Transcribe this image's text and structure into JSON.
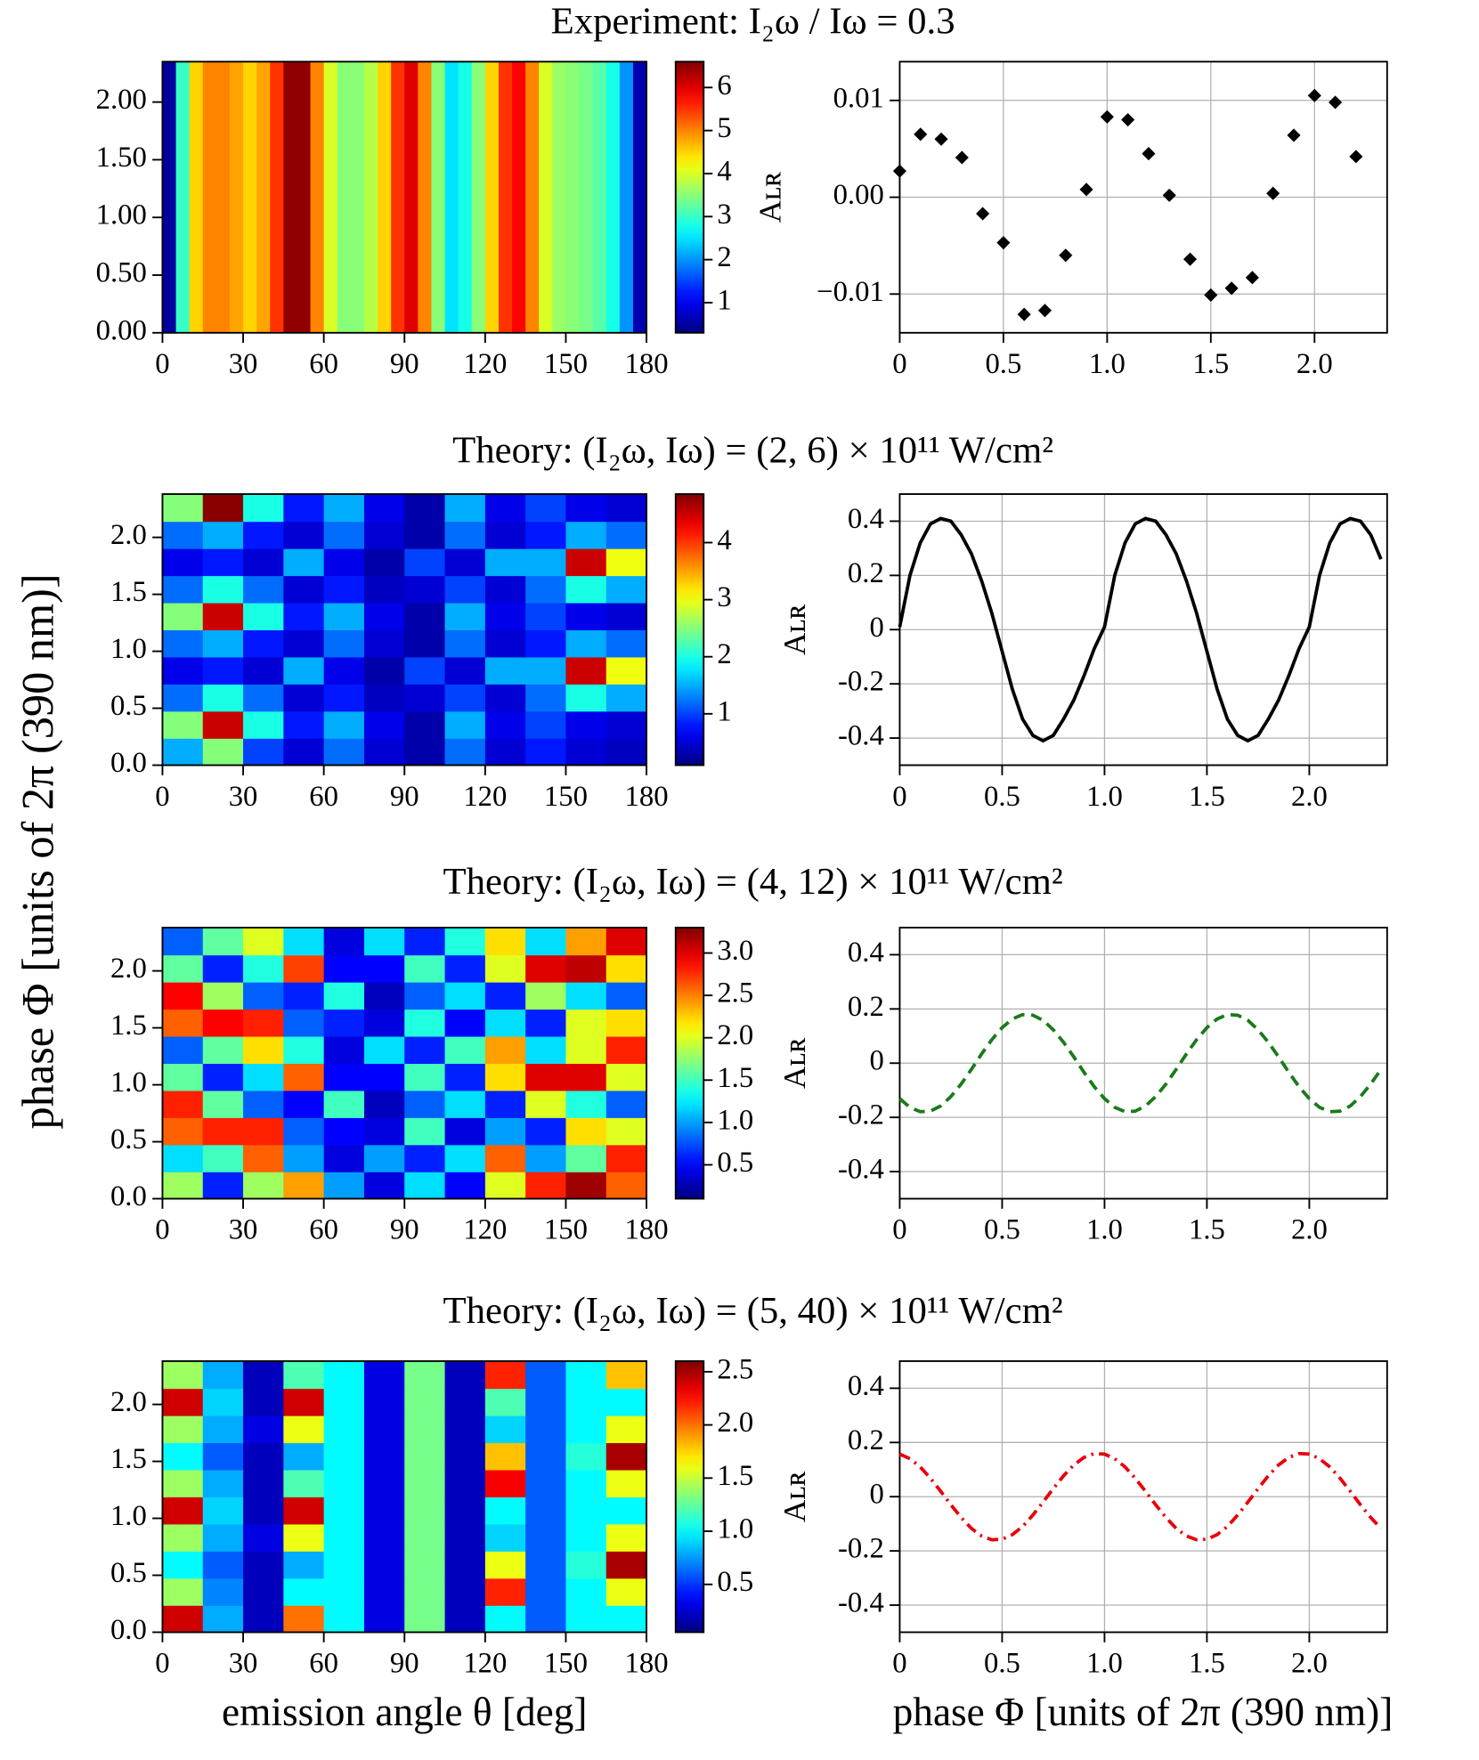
{
  "ylabel": "phase Φ [units of 2π (390 nm)]",
  "chart_data": [
    {
      "type": "heatmap",
      "title": "Experiment: I₂ω / Iω = 0.3",
      "xlim": [
        0,
        180
      ],
      "ylim": [
        0,
        2.35
      ],
      "xticks": [
        0,
        30,
        60,
        90,
        120,
        150,
        180
      ],
      "yticks": [
        {
          "value": 0,
          "label": "0.00"
        },
        {
          "value": 0.5,
          "label": "0.50"
        },
        {
          "value": 1,
          "label": "1.00"
        },
        {
          "value": 1.5,
          "label": "1.50"
        },
        {
          "value": 2,
          "label": "2.00"
        }
      ],
      "clim": [
        0.3,
        6.6
      ],
      "cticks": [
        1,
        2,
        3,
        4,
        5,
        6
      ],
      "z": [
        [
          0.5,
          3,
          4.5,
          5,
          5,
          4.8,
          4.5,
          4.8,
          5.5,
          6.5,
          6.5,
          5,
          4,
          3.5,
          3.5,
          3.8,
          4.5,
          5.5,
          6,
          5,
          3.5,
          2.5,
          2.8,
          3.5,
          4.5,
          5.5,
          5.8,
          5,
          4,
          3.6,
          3.5,
          3.4,
          3.2,
          2.8,
          2,
          0.6
        ]
      ]
    },
    {
      "type": "scatter",
      "xlim": [
        0,
        2.35
      ],
      "ylim": [
        -0.014,
        0.014
      ],
      "grid": true,
      "ylabel": "Aʟʀ",
      "color": "#000000",
      "xticks": [
        0,
        0.5,
        {
          "value": 1,
          "label": "1.0"
        },
        1.5,
        {
          "value": 2,
          "label": "2.0"
        }
      ],
      "yticks": [
        {
          "value": -0.01,
          "label": "−0.01"
        },
        {
          "value": 0,
          "label": "0.00"
        },
        0.01
      ],
      "x": [
        0,
        0.1,
        0.2,
        0.3,
        0.4,
        0.5,
        0.6,
        0.7,
        0.8,
        0.9,
        1.0,
        1.1,
        1.2,
        1.3,
        1.4,
        1.5,
        1.6,
        1.7,
        1.8,
        1.9,
        2.0,
        2.1,
        2.2
      ],
      "values": [
        0.0027,
        0.0065,
        0.006,
        0.0041,
        -0.0017,
        -0.0047,
        -0.0121,
        -0.0117,
        -0.006,
        0.0008,
        0.0083,
        0.008,
        0.0045,
        0.0002,
        -0.0064,
        -0.0101,
        -0.0094,
        -0.0083,
        0.0004,
        0.0064,
        0.0105,
        0.0098,
        0.0042
      ]
    },
    {
      "type": "heatmap",
      "title": "Theory: (I₂ω, Iω) = (2, 6) × 10¹¹ W/cm²",
      "xlim": [
        0,
        180
      ],
      "ylim": [
        0,
        2.38
      ],
      "xticks": [
        0,
        30,
        60,
        90,
        120,
        150,
        180
      ],
      "yticks": [
        {
          "value": 0,
          "label": "0.0"
        },
        0.5,
        {
          "value": 1,
          "label": "1.0"
        },
        1.5,
        {
          "value": 2,
          "label": "2.0"
        }
      ],
      "clim": [
        0.1,
        4.85
      ],
      "cticks": [
        1,
        2,
        3,
        4
      ],
      "z": [
        [
          1.5,
          2.5,
          1.0,
          0.5,
          1.2,
          0.5,
          0.3,
          1.2,
          0.5,
          0.8,
          0.5,
          0.4
        ],
        [
          2.5,
          4.5,
          2,
          0.8,
          1.5,
          0.6,
          0.3,
          1.5,
          0.6,
          1.0,
          0.6,
          0.5
        ],
        [
          1.2,
          2.0,
          1.2,
          0.5,
          0.8,
          0.4,
          0.5,
          1.0,
          0.5,
          1.2,
          2.0,
          1.5
        ],
        [
          0.6,
          0.8,
          0.5,
          1.5,
          0.6,
          0.3,
          1.0,
          0.5,
          1.5,
          1.5,
          4.5,
          3.0
        ],
        [
          1.2,
          1.5,
          0.8,
          0.5,
          1.2,
          0.5,
          0.3,
          1.2,
          0.5,
          0.8,
          1.5,
          1.2
        ],
        [
          2.5,
          4.5,
          2,
          0.8,
          1.5,
          0.6,
          0.3,
          1.5,
          0.6,
          1.0,
          0.6,
          0.5
        ],
        [
          1.2,
          2.0,
          1.2,
          0.5,
          0.8,
          0.4,
          0.5,
          1.0,
          0.5,
          1.2,
          2.0,
          1.5
        ],
        [
          0.6,
          0.8,
          0.5,
          1.5,
          0.6,
          0.3,
          1.0,
          0.5,
          1.5,
          1.5,
          4.5,
          3.0
        ],
        [
          1.2,
          1.5,
          0.8,
          0.5,
          1.2,
          0.5,
          0.3,
          1.2,
          0.5,
          0.8,
          1.5,
          1.2
        ],
        [
          2.5,
          4.8,
          2,
          0.8,
          1.5,
          0.6,
          0.3,
          1.5,
          0.6,
          1.0,
          0.6,
          0.5
        ]
      ]
    },
    {
      "type": "line",
      "xlim": [
        0,
        2.38
      ],
      "ylim": [
        -0.5,
        0.5
      ],
      "grid": true,
      "ylabel": "Aʟʀ",
      "color": "#000000",
      "linestyle": "solid",
      "xticks": [
        0,
        0.5,
        {
          "value": 1,
          "label": "1.0"
        },
        1.5,
        {
          "value": 2,
          "label": "2.0"
        }
      ],
      "yticks": [
        -0.4,
        -0.2,
        0,
        0.2,
        0.4
      ],
      "x": [
        0,
        0.05,
        0.1,
        0.15,
        0.2,
        0.25,
        0.3,
        0.35,
        0.4,
        0.45,
        0.5,
        0.55,
        0.6,
        0.65,
        0.7,
        0.75,
        0.8,
        0.85,
        0.9,
        0.95,
        1.0,
        1.05,
        1.1,
        1.15,
        1.2,
        1.25,
        1.3,
        1.35,
        1.4,
        1.45,
        1.5,
        1.55,
        1.6,
        1.65,
        1.7,
        1.75,
        1.8,
        1.85,
        1.9,
        1.95,
        2.0,
        2.05,
        2.1,
        2.15,
        2.2,
        2.25,
        2.3,
        2.35
      ],
      "values": [
        0.01,
        0.2,
        0.32,
        0.39,
        0.41,
        0.4,
        0.35,
        0.28,
        0.18,
        0.06,
        -0.08,
        -0.22,
        -0.33,
        -0.39,
        -0.41,
        -0.39,
        -0.33,
        -0.26,
        -0.17,
        -0.07,
        0.01,
        0.2,
        0.32,
        0.39,
        0.41,
        0.4,
        0.35,
        0.28,
        0.18,
        0.06,
        -0.08,
        -0.22,
        -0.33,
        -0.39,
        -0.41,
        -0.39,
        -0.33,
        -0.26,
        -0.17,
        -0.07,
        0.01,
        0.2,
        0.32,
        0.39,
        0.41,
        0.4,
        0.35,
        0.26
      ]
    },
    {
      "type": "heatmap",
      "title": "Theory: (I₂ω, Iω) = (4, 12) × 10¹¹ W/cm²",
      "xlim": [
        0,
        180
      ],
      "ylim": [
        0,
        2.38
      ],
      "xticks": [
        0,
        30,
        60,
        90,
        120,
        150,
        180
      ],
      "yticks": [
        {
          "value": 0,
          "label": "0.0"
        },
        0.5,
        {
          "value": 1,
          "label": "1.0"
        },
        1.5,
        {
          "value": 2,
          "label": "2.0"
        }
      ],
      "clim": [
        0.1,
        3.3
      ],
      "cticks": [
        0.5,
        {
          "value": 1,
          "label": "1.0"
        },
        1.5,
        {
          "value": 2,
          "label": "2.0"
        },
        2.5,
        {
          "value": 3,
          "label": "3.0"
        }
      ],
      "z": [
        [
          1.8,
          0.6,
          1.8,
          2.4,
          1.0,
          0.4,
          1.2,
          0.5,
          2.0,
          2.8,
          3.2,
          2.6
        ],
        [
          1.2,
          1.5,
          2.6,
          1.0,
          0.4,
          1.0,
          0.6,
          1.2,
          2.6,
          1.0,
          1.6,
          2.8
        ],
        [
          2.6,
          2.8,
          2.8,
          0.8,
          0.5,
          0.4,
          1.5,
          0.4,
          1.0,
          0.6,
          2.2,
          2.0
        ],
        [
          2.8,
          1.6,
          0.8,
          0.5,
          1.5,
          0.3,
          0.8,
          1.2,
          0.6,
          2.0,
          1.4,
          0.8
        ],
        [
          1.6,
          0.6,
          1.2,
          2.6,
          0.5,
          0.5,
          1.5,
          0.6,
          2.2,
          3.0,
          3.0,
          2.0
        ],
        [
          0.8,
          1.6,
          2.2,
          1.4,
          0.4,
          1.2,
          0.6,
          1.5,
          2.4,
          1.2,
          2.0,
          2.8
        ],
        [
          2.6,
          2.9,
          2.8,
          0.8,
          0.6,
          0.4,
          1.4,
          0.5,
          1.2,
          0.6,
          2.0,
          2.2
        ],
        [
          2.9,
          1.8,
          0.8,
          0.6,
          1.4,
          0.3,
          0.8,
          1.2,
          0.6,
          1.8,
          1.2,
          0.8
        ],
        [
          1.6,
          0.6,
          1.4,
          2.7,
          0.5,
          0.5,
          1.5,
          0.6,
          2.0,
          3.0,
          3.1,
          2.2
        ],
        [
          0.8,
          1.6,
          2.0,
          1.2,
          0.4,
          1.2,
          0.6,
          1.4,
          2.2,
          1.2,
          2.4,
          3.0
        ]
      ]
    },
    {
      "type": "line",
      "xlim": [
        0,
        2.38
      ],
      "ylim": [
        -0.5,
        0.5
      ],
      "grid": true,
      "ylabel": "Aʟʀ",
      "color": "#1a7a1a",
      "linestyle": "dashed",
      "xticks": [
        0,
        0.5,
        {
          "value": 1,
          "label": "1.0"
        },
        1.5,
        {
          "value": 2,
          "label": "2.0"
        }
      ],
      "yticks": [
        -0.4,
        -0.2,
        0,
        0.2,
        0.4
      ],
      "x": [
        0,
        0.05,
        0.1,
        0.15,
        0.2,
        0.25,
        0.3,
        0.35,
        0.4,
        0.45,
        0.5,
        0.55,
        0.6,
        0.65,
        0.7,
        0.75,
        0.8,
        0.85,
        0.9,
        0.95,
        1.0,
        1.05,
        1.1,
        1.15,
        1.2,
        1.25,
        1.3,
        1.35,
        1.4,
        1.45,
        1.5,
        1.55,
        1.6,
        1.65,
        1.7,
        1.75,
        1.8,
        1.85,
        1.9,
        1.95,
        2.0,
        2.05,
        2.1,
        2.15,
        2.2,
        2.25,
        2.3,
        2.35
      ],
      "values": [
        -0.131,
        -0.163,
        -0.179,
        -0.177,
        -0.158,
        -0.123,
        -0.077,
        -0.023,
        0.034,
        0.087,
        0.131,
        0.163,
        0.179,
        0.177,
        0.158,
        0.123,
        0.077,
        0.023,
        -0.034,
        -0.087,
        -0.131,
        -0.163,
        -0.179,
        -0.177,
        -0.158,
        -0.123,
        -0.077,
        -0.023,
        0.034,
        0.087,
        0.131,
        0.163,
        0.179,
        0.177,
        0.158,
        0.123,
        0.077,
        0.023,
        -0.034,
        -0.087,
        -0.131,
        -0.163,
        -0.179,
        -0.177,
        -0.158,
        -0.123,
        -0.077,
        -0.023
      ]
    },
    {
      "type": "heatmap",
      "title": "Theory: (I₂ω, Iω) = (5, 40) × 10¹¹ W/cm²",
      "xlabel": "emission angle θ [deg]",
      "xlim": [
        0,
        180
      ],
      "ylim": [
        0,
        2.38
      ],
      "xticks": [
        0,
        30,
        60,
        90,
        120,
        150,
        180
      ],
      "yticks": [
        {
          "value": 0,
          "label": "0.0"
        },
        0.5,
        {
          "value": 1,
          "label": "1.0"
        },
        1.5,
        {
          "value": 2,
          "label": "2.0"
        }
      ],
      "clim": [
        0.05,
        2.6
      ],
      "cticks": [
        0.5,
        {
          "value": 1,
          "label": "1.0"
        },
        1.5,
        {
          "value": 2,
          "label": "2.0"
        },
        2.5
      ],
      "z": [
        [
          2.4,
          0.8,
          0.2,
          2.0,
          1.0,
          0.3,
          1.3,
          0.2,
          1.0,
          0.6,
          1.0,
          1.0
        ],
        [
          1.4,
          0.7,
          0.2,
          1.0,
          1.0,
          0.3,
          1.3,
          0.2,
          2.2,
          0.6,
          1.0,
          1.6
        ],
        [
          1.0,
          0.6,
          0.2,
          0.8,
          1.0,
          0.3,
          1.3,
          0.2,
          1.6,
          0.6,
          1.1,
          2.5
        ],
        [
          1.4,
          0.8,
          0.3,
          1.6,
          1.0,
          0.3,
          1.3,
          0.2,
          0.9,
          0.6,
          1.0,
          1.6
        ],
        [
          2.4,
          0.9,
          0.2,
          2.4,
          1.0,
          0.3,
          1.3,
          0.2,
          1.0,
          0.6,
          1.0,
          1.0
        ],
        [
          1.4,
          0.8,
          0.2,
          1.2,
          1.0,
          0.3,
          1.3,
          0.2,
          2.3,
          0.6,
          1.0,
          1.6
        ],
        [
          1.0,
          0.6,
          0.2,
          0.8,
          1.0,
          0.3,
          1.3,
          0.2,
          1.8,
          0.6,
          1.1,
          2.5
        ],
        [
          1.4,
          0.8,
          0.3,
          1.6,
          1.0,
          0.3,
          1.3,
          0.2,
          0.9,
          0.6,
          1.0,
          1.6
        ],
        [
          2.4,
          0.9,
          0.2,
          2.4,
          1.0,
          0.3,
          1.3,
          0.2,
          1.2,
          0.6,
          1.0,
          1.0
        ],
        [
          1.4,
          0.8,
          0.2,
          1.2,
          1.0,
          0.3,
          1.3,
          0.2,
          2.2,
          0.6,
          1.0,
          1.8
        ]
      ]
    },
    {
      "type": "line",
      "xlabel": "phase Φ [units of 2π (390 nm)]",
      "xlim": [
        0,
        2.38
      ],
      "ylim": [
        -0.5,
        0.5
      ],
      "grid": true,
      "ylabel": "Aʟʀ",
      "color": "#e8000b",
      "linestyle": "dashdot",
      "xticks": [
        0,
        0.5,
        {
          "value": 1,
          "label": "1.0"
        },
        1.5,
        {
          "value": 2,
          "label": "2.0"
        }
      ],
      "yticks": [
        -0.4,
        -0.2,
        0,
        0.2,
        0.4
      ],
      "x": [
        0,
        0.05,
        0.1,
        0.15,
        0.2,
        0.25,
        0.3,
        0.35,
        0.4,
        0.45,
        0.5,
        0.55,
        0.6,
        0.65,
        0.7,
        0.75,
        0.8,
        0.85,
        0.9,
        0.95,
        1.0,
        1.05,
        1.1,
        1.15,
        1.2,
        1.25,
        1.3,
        1.35,
        1.4,
        1.45,
        1.5,
        1.55,
        1.6,
        1.65,
        1.7,
        1.75,
        1.8,
        1.85,
        1.9,
        1.95,
        2.0,
        2.05,
        2.1,
        2.15,
        2.2,
        2.25,
        2.3,
        2.35
      ],
      "values": [
        0.157,
        0.14,
        0.11,
        0.068,
        0.02,
        -0.03,
        -0.077,
        -0.117,
        -0.145,
        -0.159,
        -0.157,
        -0.14,
        -0.11,
        -0.068,
        -0.02,
        0.03,
        0.077,
        0.117,
        0.145,
        0.159,
        0.157,
        0.14,
        0.11,
        0.068,
        0.02,
        -0.03,
        -0.077,
        -0.117,
        -0.145,
        -0.159,
        -0.157,
        -0.14,
        -0.11,
        -0.068,
        -0.02,
        0.03,
        0.077,
        0.117,
        0.145,
        0.159,
        0.157,
        0.14,
        0.11,
        0.068,
        0.02,
        -0.03,
        -0.077,
        -0.117
      ]
    }
  ]
}
